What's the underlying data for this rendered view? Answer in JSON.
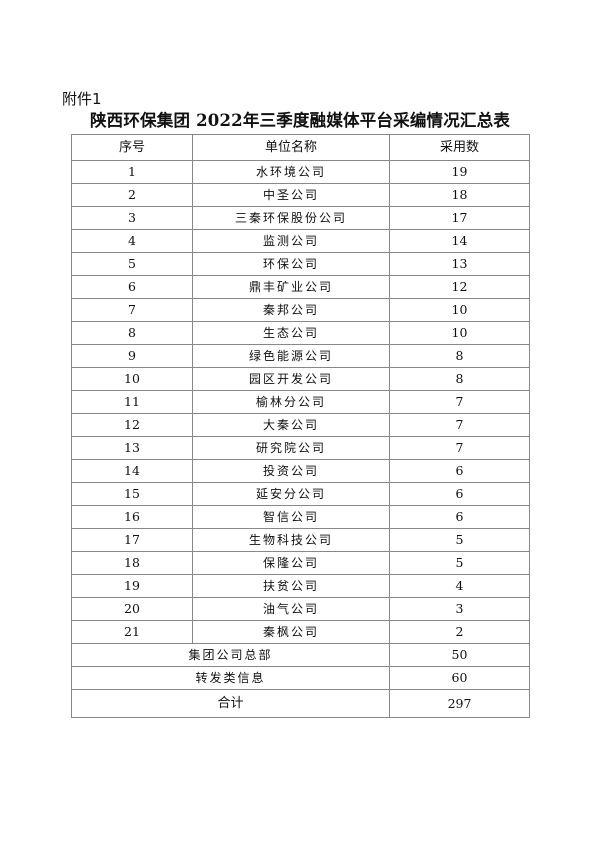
{
  "attachment_label": "附件1",
  "title": "陕西环保集团 2022年三季度融媒体平台采编情况汇总表",
  "table": {
    "headers": [
      "序号",
      "单位名称",
      "采用数"
    ],
    "rows": [
      {
        "no": "1",
        "name": "水环境公司",
        "count": "19"
      },
      {
        "no": "2",
        "name": "中圣公司",
        "count": "18"
      },
      {
        "no": "3",
        "name": "三秦环保股份公司",
        "count": "17"
      },
      {
        "no": "4",
        "name": "监测公司",
        "count": "14"
      },
      {
        "no": "5",
        "name": "环保公司",
        "count": "13"
      },
      {
        "no": "6",
        "name": "鼎丰矿业公司",
        "count": "12"
      },
      {
        "no": "7",
        "name": "秦邦公司",
        "count": "10"
      },
      {
        "no": "8",
        "name": "生态公司",
        "count": "10"
      },
      {
        "no": "9",
        "name": "绿色能源公司",
        "count": "8"
      },
      {
        "no": "10",
        "name": "园区开发公司",
        "count": "8"
      },
      {
        "no": "11",
        "name": "榆林分公司",
        "count": "7"
      },
      {
        "no": "12",
        "name": "大秦公司",
        "count": "7"
      },
      {
        "no": "13",
        "name": "研究院公司",
        "count": "7"
      },
      {
        "no": "14",
        "name": "投资公司",
        "count": "6"
      },
      {
        "no": "15",
        "name": "延安分公司",
        "count": "6"
      },
      {
        "no": "16",
        "name": "智信公司",
        "count": "6"
      },
      {
        "no": "17",
        "name": "生物科技公司",
        "count": "5"
      },
      {
        "no": "18",
        "name": "保隆公司",
        "count": "5"
      },
      {
        "no": "19",
        "name": "扶贫公司",
        "count": "4"
      },
      {
        "no": "20",
        "name": "油气公司",
        "count": "3"
      },
      {
        "no": "21",
        "name": "秦枫公司",
        "count": "2"
      }
    ],
    "summary_rows": [
      {
        "name": "集团公司总部",
        "count": "50"
      },
      {
        "name": "转发类信息",
        "count": "60"
      }
    ],
    "total": {
      "label": "合计",
      "count": "297"
    }
  }
}
